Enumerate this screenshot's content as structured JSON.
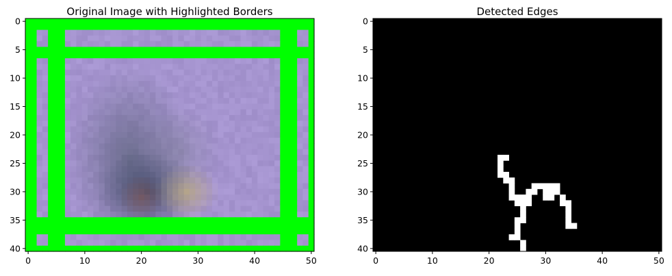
{
  "chart_data": [
    {
      "type": "heatmap",
      "title": "Original Image with Highlighted Borders",
      "xlabel": "",
      "ylabel": "",
      "xlim": [
        -0.5,
        50.5
      ],
      "ylim": [
        40.5,
        -0.5
      ],
      "x_ticks": [
        "0",
        "10",
        "20",
        "30",
        "40",
        "50"
      ],
      "y_ticks": [
        "0",
        "5",
        "10",
        "15",
        "20",
        "25",
        "30",
        "35",
        "40"
      ],
      "highlight_color": "#00ff00",
      "background_color": "#a594cf",
      "highlighted_rows": [
        [
          0,
          1
        ],
        [
          5,
          6
        ],
        [
          35,
          37
        ],
        [
          40,
          40
        ]
      ],
      "highlighted_columns": [
        [
          0,
          1
        ],
        [
          4,
          6
        ],
        [
          45,
          47
        ],
        [
          50,
          50
        ]
      ],
      "blur_blob_colors": [
        "#5a6179",
        "#2e3c55",
        "#8c5a55",
        "#c2b07a"
      ]
    },
    {
      "type": "heatmap",
      "title": "Detected Edges",
      "xlabel": "",
      "ylabel": "",
      "xlim": [
        -0.5,
        50.5
      ],
      "ylim": [
        40.5,
        -0.5
      ],
      "x_ticks": [
        "0",
        "10",
        "20",
        "30",
        "40",
        "50"
      ],
      "y_ticks": [
        "0",
        "5",
        "10",
        "15",
        "20",
        "25",
        "30",
        "35",
        "40"
      ],
      "background_color": "#000000",
      "edge_color": "#ffffff",
      "edge_pixels": [
        [
          22,
          24
        ],
        [
          23,
          24
        ],
        [
          22,
          25
        ],
        [
          22,
          26
        ],
        [
          22,
          27
        ],
        [
          23,
          27
        ],
        [
          23,
          28
        ],
        [
          24,
          28
        ],
        [
          24,
          29
        ],
        [
          24,
          30
        ],
        [
          24,
          31
        ],
        [
          25,
          31
        ],
        [
          25,
          32
        ],
        [
          26,
          32
        ],
        [
          27,
          32
        ],
        [
          26,
          31
        ],
        [
          27,
          31
        ],
        [
          27,
          30
        ],
        [
          28,
          30
        ],
        [
          28,
          29
        ],
        [
          29,
          29
        ],
        [
          30,
          29
        ],
        [
          31,
          29
        ],
        [
          32,
          29
        ],
        [
          32,
          30
        ],
        [
          31,
          30
        ],
        [
          30,
          30
        ],
        [
          31,
          31
        ],
        [
          30,
          31
        ],
        [
          33,
          31
        ],
        [
          33,
          32
        ],
        [
          34,
          32
        ],
        [
          34,
          33
        ],
        [
          34,
          34
        ],
        [
          34,
          35
        ],
        [
          34,
          36
        ],
        [
          35,
          36
        ],
        [
          26,
          33
        ],
        [
          26,
          34
        ],
        [
          25,
          35
        ],
        [
          26,
          35
        ],
        [
          25,
          36
        ],
        [
          25,
          37
        ],
        [
          25,
          38
        ],
        [
          24,
          38
        ],
        [
          26,
          39
        ],
        [
          26,
          40
        ]
      ]
    }
  ]
}
